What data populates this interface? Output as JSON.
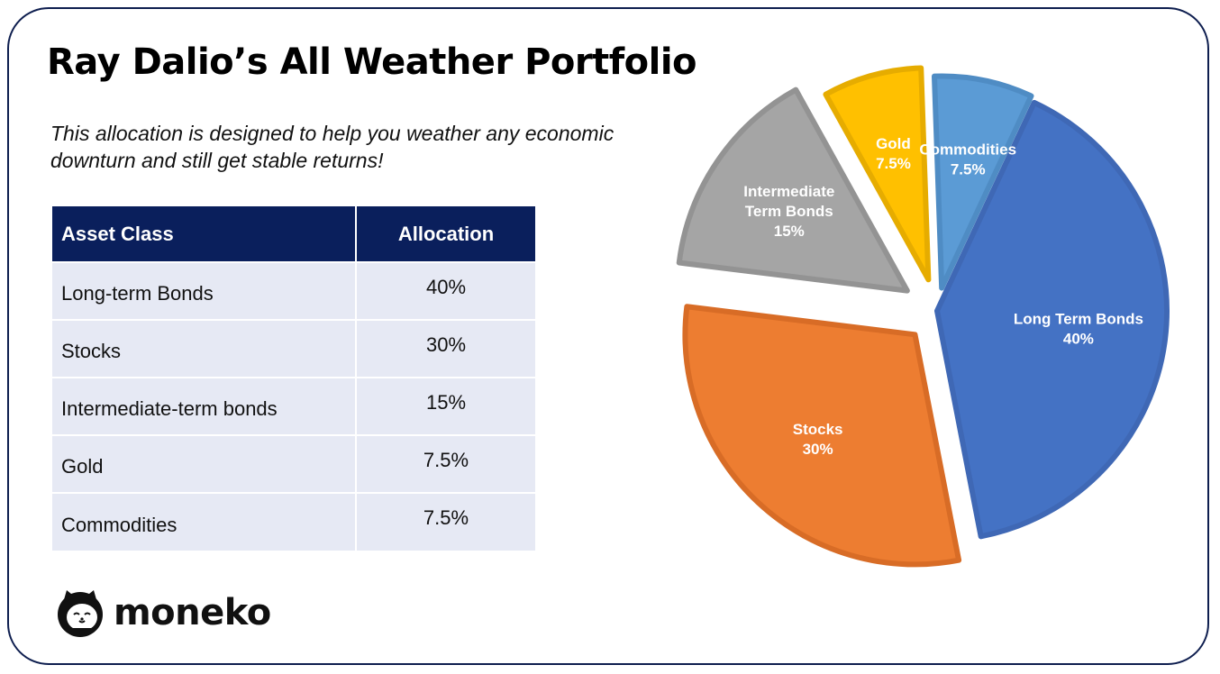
{
  "title": "Ray Dalio’s All Weather Portfolio",
  "subtitle": "This allocation is designed to help you weather any economic downturn and still get stable returns!",
  "table": {
    "headers": [
      "Asset Class",
      "Allocation"
    ],
    "rows": [
      {
        "asset": "Long-term Bonds",
        "allocation": "40%"
      },
      {
        "asset": "Stocks",
        "allocation": "30%"
      },
      {
        "asset": "Intermediate-term bonds",
        "allocation": "15%"
      },
      {
        "asset": "Gold",
        "allocation": "7.5%"
      },
      {
        "asset": "Commodities",
        "allocation": "7.5%"
      }
    ]
  },
  "brand": {
    "name": "moneko",
    "logo_icon": "cat-face-icon"
  },
  "colors": {
    "header_bg": "#0a1f5c",
    "row_bg": "#e6e9f4",
    "border": "#0e1e4f"
  },
  "chart_data": {
    "type": "pie",
    "exploded": true,
    "slices": [
      {
        "label_lines": [
          "Long Term Bonds",
          "40%"
        ],
        "value": 40,
        "color": "#4472c4",
        "stroke": "#3f68b5"
      },
      {
        "label_lines": [
          "Stocks",
          "30%"
        ],
        "value": 30,
        "color": "#ed7d31",
        "stroke": "#d86c26"
      },
      {
        "label_lines": [
          "Intermediate",
          "Term Bonds",
          "15%"
        ],
        "value": 15,
        "color": "#a5a5a5",
        "stroke": "#939393"
      },
      {
        "label_lines": [
          "Gold",
          "7.5%"
        ],
        "value": 7.5,
        "color": "#ffc000",
        "stroke": "#e6ac00"
      },
      {
        "label_lines": [
          "Commodities",
          "7.5%"
        ],
        "value": 7.5,
        "color": "#5b9bd5",
        "stroke": "#4f8cc4"
      }
    ]
  }
}
